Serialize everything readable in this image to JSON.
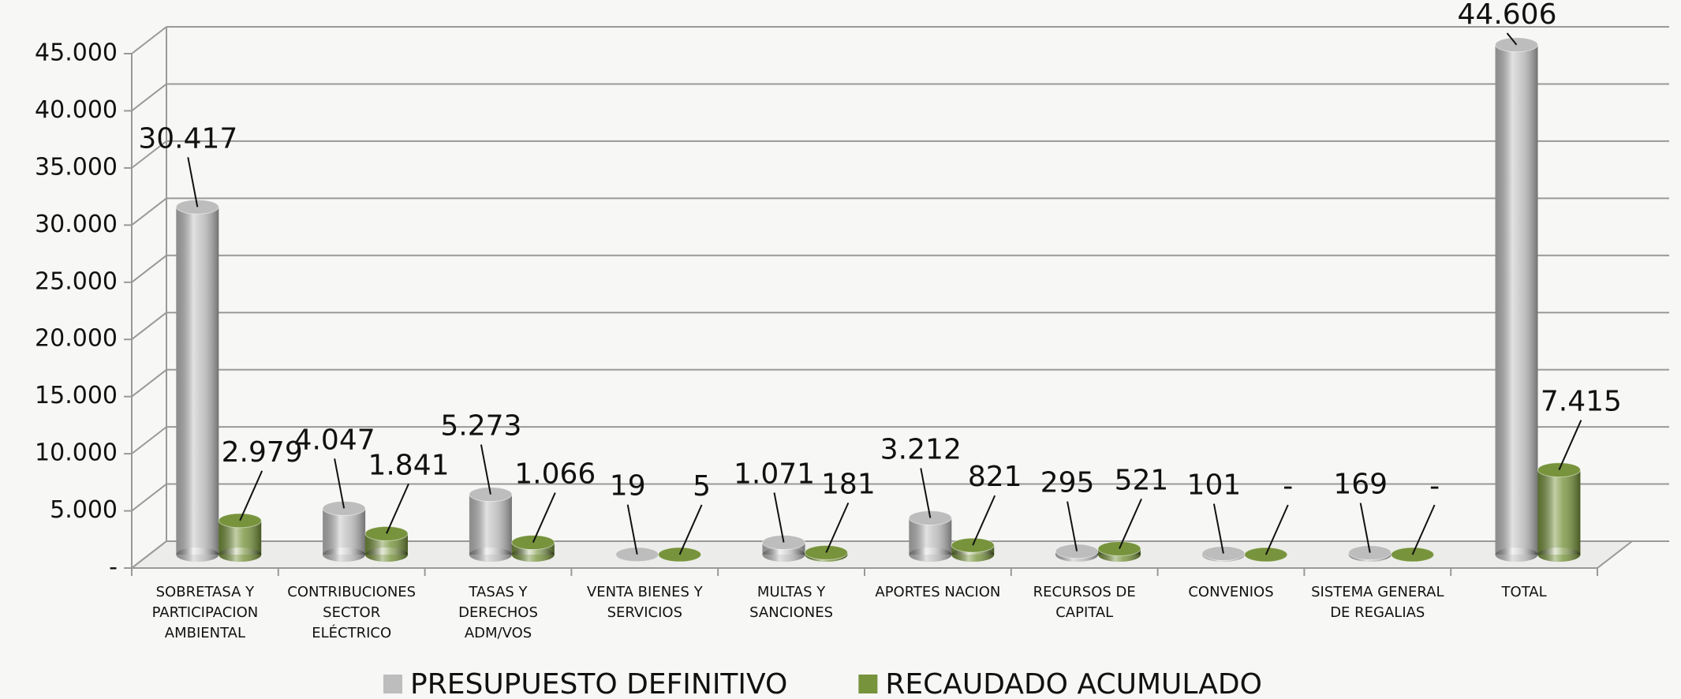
{
  "chart_data": {
    "type": "bar3d",
    "categories": [
      "SOBRETASA Y PARTICIPACION AMBIENTAL",
      "CONTRIBUCIONES SECTOR ELÉCTRICO",
      "TASAS Y DERECHOS ADM/VOS",
      "VENTA BIENES Y SERVICIOS",
      "MULTAS Y SANCIONES",
      "APORTES NACION",
      "RECURSOS DE CAPITAL",
      "CONVENIOS",
      "SISTEMA GENERAL DE REGALIAS",
      "TOTAL"
    ],
    "series": [
      {
        "name": "PRESUPUESTO DEFINITIVO",
        "color": "#bdbdbd",
        "values": [
          30417,
          4047,
          5273,
          19,
          1071,
          3212,
          295,
          101,
          169,
          44606
        ],
        "value_labels": [
          "30.417",
          "4.047",
          "5.273",
          "19",
          "1.071",
          "3.212",
          "295",
          "101",
          "169",
          "44.606"
        ]
      },
      {
        "name": "RECAUDADO ACUMULADO",
        "color": "#77933c",
        "values": [
          2979,
          1841,
          1066,
          5,
          181,
          821,
          521,
          0,
          0,
          7415
        ],
        "value_labels": [
          "2.979",
          "1.841",
          "1.066",
          "5",
          "181",
          "821",
          "521",
          "-",
          "-",
          "7.415"
        ]
      }
    ],
    "ylim": [
      0,
      45000
    ],
    "yticks": [
      {
        "value": 0,
        "label": "-"
      },
      {
        "value": 5000,
        "label": "5.000"
      },
      {
        "value": 10000,
        "label": "10.000"
      },
      {
        "value": 15000,
        "label": "15.000"
      },
      {
        "value": 20000,
        "label": "20.000"
      },
      {
        "value": 25000,
        "label": "25.000"
      },
      {
        "value": 30000,
        "label": "30.000"
      },
      {
        "value": 35000,
        "label": "35.000"
      },
      {
        "value": 40000,
        "label": "40.000"
      },
      {
        "value": 45000,
        "label": "45.000"
      }
    ],
    "grid": true,
    "legend": "bottom"
  }
}
